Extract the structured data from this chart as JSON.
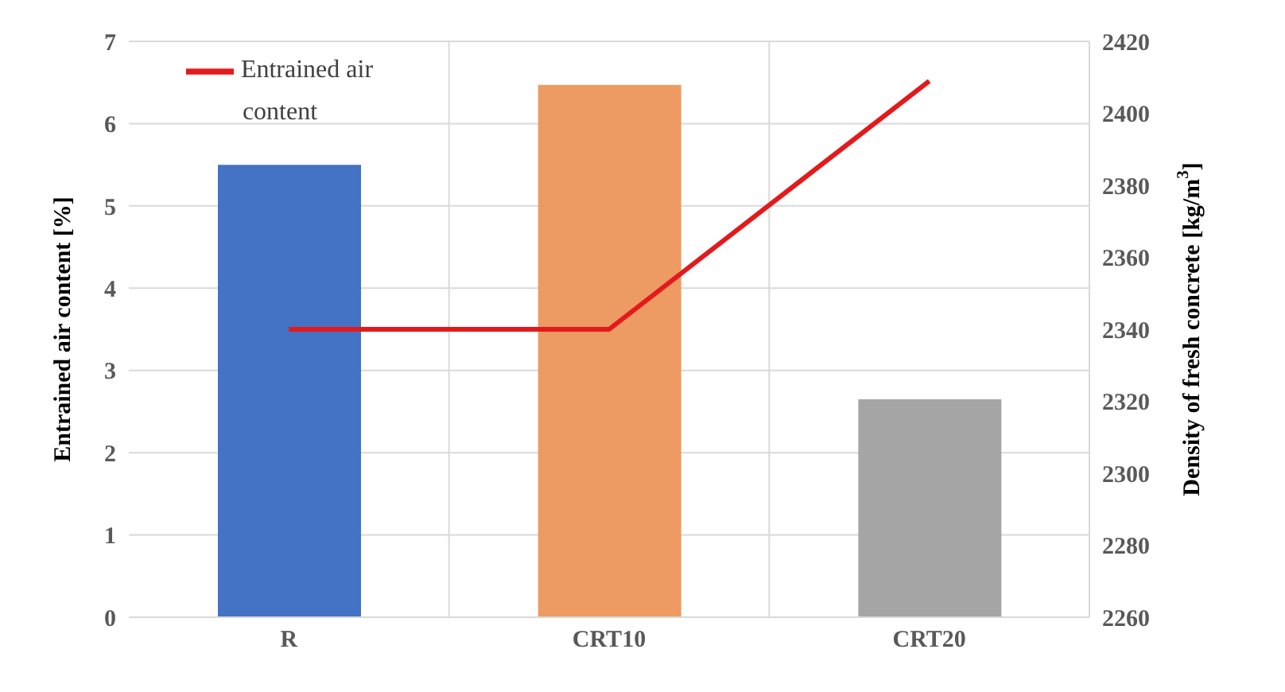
{
  "chart_data": {
    "type": "bar",
    "categories": [
      "R",
      "CRT10",
      "CRT20"
    ],
    "series": [
      {
        "colors": [
          "#4472c4",
          "#ed9b62",
          "#a5a5a5"
        ],
        "values": [
          5.5,
          6.47,
          2.65
        ]
      },
      {
        "type": "line",
        "name": "Entrained air content",
        "color": "#e31a1c",
        "axis": "y2",
        "values": [
          2340,
          2340,
          2409
        ]
      }
    ],
    "ylabel": "Entrained air content [%]",
    "y2label": "Density of fresh concrete [kg/m$^{3}$]",
    "ylim": [
      0,
      7
    ],
    "yticks": [
      0,
      1,
      2,
      3,
      4,
      5,
      6,
      7
    ],
    "y2lim": [
      2260,
      2420
    ],
    "y2ticks": [
      2260,
      2280,
      2300,
      2320,
      2340,
      2360,
      2380,
      2400,
      2420
    ],
    "grid": true,
    "legend": "top left",
    "marker": "none",
    "line_style": "solid"
  }
}
